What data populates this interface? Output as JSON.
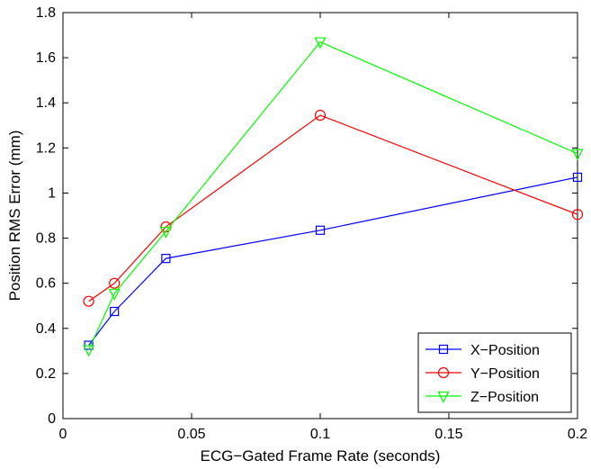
{
  "chart_data": {
    "type": "line",
    "xlabel": "ECG−Gated Frame Rate (seconds)",
    "ylabel": "Position RMS Error (mm)",
    "xlim": [
      0,
      0.2
    ],
    "ylim": [
      0,
      1.8
    ],
    "x_ticks": [
      0,
      0.05,
      0.1,
      0.15,
      0.2
    ],
    "x_tick_labels": [
      "0",
      "0.05",
      "0.1",
      "0.15",
      "0.2"
    ],
    "y_ticks": [
      0,
      0.2,
      0.4,
      0.6,
      0.8,
      1.0,
      1.2,
      1.4,
      1.6,
      1.8
    ],
    "y_tick_labels": [
      "0",
      "0.2",
      "0.4",
      "0.6",
      "0.8",
      "1",
      "1.2",
      "1.4",
      "1.6",
      "1.8"
    ],
    "grid": false,
    "legend_position": "bottom-right",
    "x": [
      0.01,
      0.02,
      0.04,
      0.1,
      0.2
    ],
    "series": [
      {
        "name": "X−Position",
        "color": "#0000ff",
        "marker": "square",
        "values": [
          0.325,
          0.475,
          0.71,
          0.835,
          1.07
        ]
      },
      {
        "name": "Y−Position",
        "color": "#ff0000",
        "marker": "circle",
        "values": [
          0.52,
          0.6,
          0.85,
          1.345,
          0.905
        ]
      },
      {
        "name": "Z−Position",
        "color": "#00ff00",
        "marker": "triangle-down",
        "values": [
          0.305,
          0.555,
          0.83,
          1.67,
          1.175
        ]
      }
    ]
  }
}
